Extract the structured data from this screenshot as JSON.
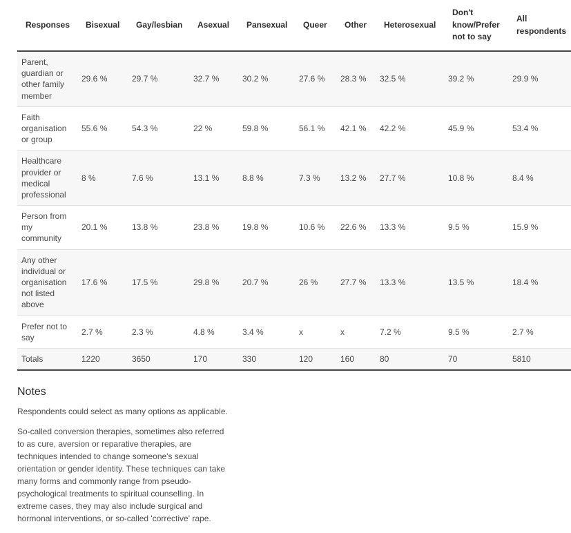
{
  "chart_data": {
    "type": "table",
    "title": "",
    "columns": [
      "Responses",
      "Bisexual",
      "Gay/lesbian",
      "Asexual",
      "Pansexual",
      "Queer",
      "Other",
      "Heterosexual",
      "Don't know/Prefer not to say",
      "All respondents"
    ],
    "rows": [
      {
        "label": "Parent, guardian or other family member",
        "values": [
          "29.6 %",
          "29.7 %",
          "32.7 %",
          "30.2 %",
          "27.6 %",
          "28.3 %",
          "32.5 %",
          "39.2 %",
          "29.9 %"
        ]
      },
      {
        "label": "Faith organisation or group",
        "values": [
          "55.6 %",
          "54.3 %",
          "22 %",
          "59.8 %",
          "56.1 %",
          "42.1 %",
          "42.2 %",
          "45.9 %",
          "53.4 %"
        ]
      },
      {
        "label": "Healthcare provider or medical professional",
        "values": [
          "8 %",
          "7.6 %",
          "13.1 %",
          "8.8 %",
          "7.3 %",
          "13.2 %",
          "27.7 %",
          "10.8 %",
          "8.4 %"
        ]
      },
      {
        "label": "Person from my community",
        "values": [
          "20.1 %",
          "13.8 %",
          "23.8 %",
          "19.8 %",
          "10.6 %",
          "22.6 %",
          "13.3 %",
          "9.5 %",
          "15.9 %"
        ]
      },
      {
        "label": "Any other individual or organisation not listed above",
        "values": [
          "17.6 %",
          "17.5 %",
          "29.8 %",
          "20.7 %",
          "26 %",
          "27.7 %",
          "13.3 %",
          "13.5 %",
          "18.4 %"
        ]
      },
      {
        "label": "Prefer not to say",
        "values": [
          "2.7 %",
          "2.3 %",
          "4.8 %",
          "3.4 %",
          "x",
          "x",
          "7.2 %",
          "9.5 %",
          "2.7 %"
        ]
      },
      {
        "label": "Totals",
        "values": [
          "1220",
          "3650",
          "170",
          "330",
          "120",
          "160",
          "80",
          "70",
          "5810"
        ]
      }
    ],
    "layout_hints": {
      "row_stripes": true,
      "suppressed_value_marker": "x"
    }
  },
  "notes": {
    "heading": "Notes",
    "paragraphs": [
      "Respondents could select as many options as applicable.",
      "So-called conversion therapies, sometimes also referred to as cure, aversion or reparative therapies, are techniques intended to change someone's sexual orientation or gender identity. These techniques can take many forms and commonly range from pseudo-psychological treatments to spiritual counselling. In extreme cases, they may also include surgical and hormonal interventions, or so-called 'corrective' rape."
    ]
  },
  "colors": {
    "stripe_row": "#f7f7f7",
    "dark_rule": "#474747",
    "light_rule": "#e2e2e2",
    "body_text": "#4a4a4a",
    "header_text": "#2d2d2d"
  }
}
